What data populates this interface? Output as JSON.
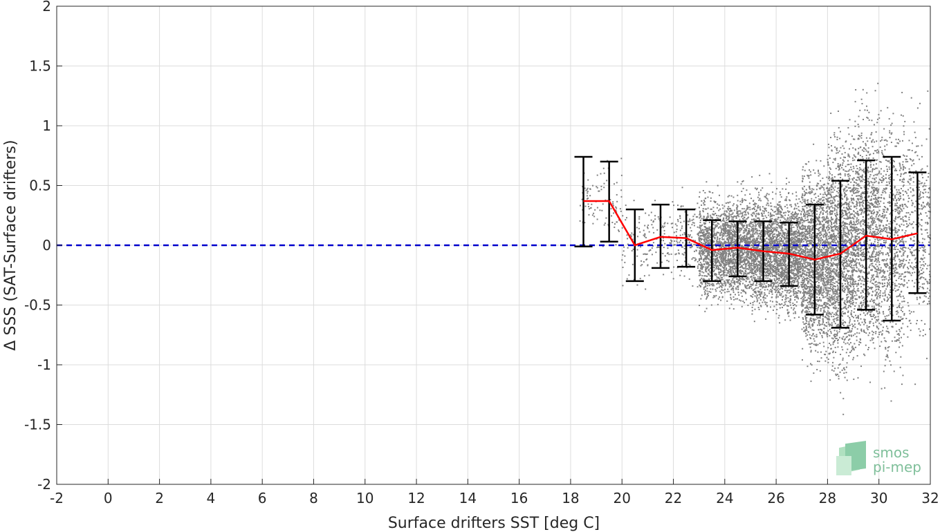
{
  "chart_data": {
    "type": "scatter",
    "xlabel": "Surface drifters SST [deg C]",
    "ylabel": "Δ SSS (SAT-Surface drifters)",
    "xlim": [
      -2,
      32
    ],
    "ylim": [
      -2,
      2
    ],
    "xticks": [
      -2,
      0,
      2,
      4,
      6,
      8,
      10,
      12,
      14,
      16,
      18,
      20,
      22,
      24,
      26,
      28,
      30,
      32
    ],
    "yticks": [
      -2,
      -1.5,
      -1,
      -0.5,
      0,
      0.5,
      1,
      1.5,
      2
    ],
    "xtick_labels": [
      "-2",
      "0",
      "2",
      "4",
      "6",
      "8",
      "10",
      "12",
      "14",
      "16",
      "18",
      "20",
      "22",
      "24",
      "26",
      "28",
      "30",
      "32"
    ],
    "ytick_labels": [
      "-2",
      "-1.5",
      "-1",
      "-0.5",
      "0",
      "0.5",
      "1",
      "1.5",
      "2"
    ],
    "grid": true,
    "reference_line": {
      "y": 0,
      "color": "#0000cc",
      "style": "dashed"
    },
    "scatter_color": "#808080",
    "scatter_description_x_range": [
      18.3,
      32
    ],
    "series": [
      {
        "type": "line",
        "color": "#ff0000",
        "x": [
          18.5,
          19.5,
          20.5,
          21.5,
          22.5,
          23.5,
          24.5,
          25.5,
          26.5,
          27.5,
          28.5,
          29.5,
          30.5,
          31.5
        ],
        "values": [
          0.37,
          0.37,
          0.0,
          0.07,
          0.06,
          -0.04,
          -0.02,
          -0.05,
          -0.07,
          -0.12,
          -0.07,
          0.08,
          0.05,
          0.1
        ]
      },
      {
        "type": "errorbar",
        "color": "#000000",
        "x": [
          18.5,
          19.5,
          20.5,
          21.5,
          22.5,
          23.5,
          24.5,
          25.5,
          26.5,
          27.5,
          28.5,
          29.5,
          30.5,
          31.5
        ],
        "upper": [
          0.74,
          0.7,
          0.3,
          0.34,
          0.3,
          0.21,
          0.2,
          0.2,
          0.19,
          0.34,
          0.54,
          0.71,
          0.74,
          0.61
        ],
        "lower": [
          -0.01,
          0.03,
          -0.3,
          -0.19,
          -0.18,
          -0.3,
          -0.26,
          -0.3,
          -0.34,
          -0.58,
          -0.69,
          -0.54,
          -0.63,
          -0.4
        ]
      }
    ]
  },
  "logo": {
    "line1": "smos",
    "line2": "pi-mep",
    "color": "#7fbf9a"
  }
}
